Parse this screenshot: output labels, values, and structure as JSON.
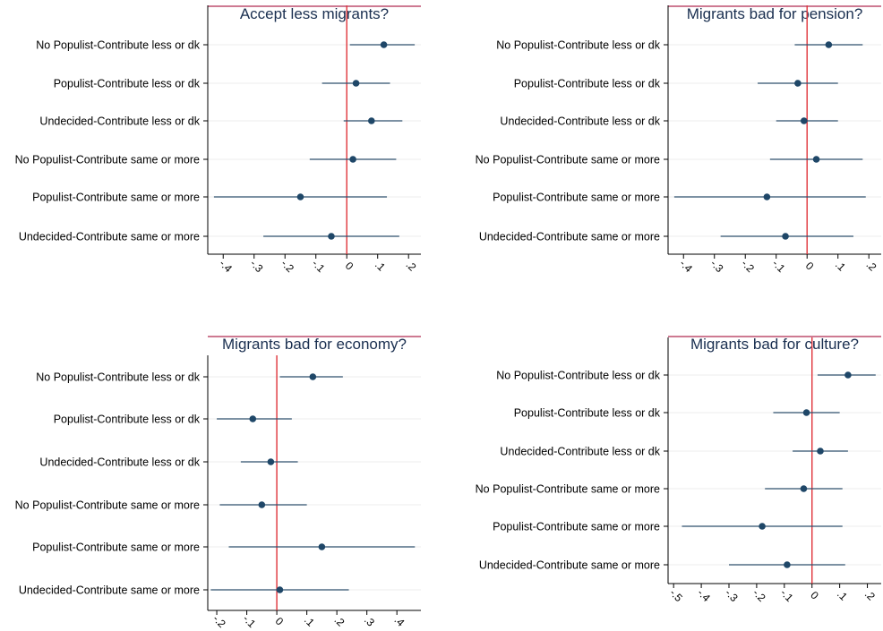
{
  "chart_data": [
    {
      "type": "coefficient-plot",
      "title": "Accept less migrants?",
      "categories": [
        "No Populist-Contribute less or dk",
        "Populist-Contribute less or dk",
        "Undecided-Contribute less or dk",
        "No Populist-Contribute same or more",
        "Populist-Contribute same or more",
        "Undecided-Contribute same or more"
      ],
      "estimates": [
        0.12,
        0.03,
        0.08,
        0.02,
        -0.15,
        -0.05
      ],
      "ci_low": [
        0.01,
        -0.08,
        -0.01,
        -0.12,
        -0.43,
        -0.27
      ],
      "ci_high": [
        0.22,
        0.14,
        0.18,
        0.16,
        0.13,
        0.17
      ],
      "xticks": [
        -0.4,
        -0.3,
        -0.2,
        -0.1,
        0,
        0.1,
        0.2
      ],
      "xtick_labels": [
        "-.4",
        "-.3",
        "-.2",
        "-.1",
        "0",
        ".1",
        ".2"
      ],
      "xlim": [
        -0.45,
        0.24
      ],
      "reference_line": 0
    },
    {
      "type": "coefficient-plot",
      "title": "Migrants bad for pension?",
      "categories": [
        "No Populist-Contribute less or dk",
        "Populist-Contribute less or dk",
        "Undecided-Contribute less or dk",
        "No Populist-Contribute same or more",
        "Populist-Contribute same or more",
        "Undecided-Contribute same or more"
      ],
      "estimates": [
        0.07,
        -0.03,
        -0.01,
        0.03,
        -0.13,
        -0.07
      ],
      "ci_low": [
        -0.04,
        -0.16,
        -0.1,
        -0.12,
        -0.43,
        -0.28
      ],
      "ci_high": [
        0.18,
        0.1,
        0.1,
        0.18,
        0.19,
        0.15
      ],
      "xticks": [
        -0.4,
        -0.3,
        -0.2,
        -0.1,
        0,
        0.1,
        0.2
      ],
      "xtick_labels": [
        "-.4",
        "-.3",
        "-.2",
        "-.1",
        "0",
        ".1",
        ".2"
      ],
      "xlim": [
        -0.45,
        0.24
      ],
      "reference_line": 0
    },
    {
      "type": "coefficient-plot",
      "title": "Migrants bad for economy?",
      "categories": [
        "No Populist-Contribute less or dk",
        "Populist-Contribute less or dk",
        "Undecided-Contribute less or dk",
        "No Populist-Contribute same or more",
        "Populist-Contribute same or more",
        "Undecided-Contribute same or more"
      ],
      "estimates": [
        0.12,
        -0.08,
        -0.02,
        -0.05,
        0.15,
        0.01
      ],
      "ci_low": [
        0.01,
        -0.2,
        -0.12,
        -0.19,
        -0.16,
        -0.22
      ],
      "ci_high": [
        0.22,
        0.05,
        0.07,
        0.1,
        0.46,
        0.24
      ],
      "xticks": [
        -0.2,
        -0.1,
        0,
        0.1,
        0.2,
        0.3,
        0.4
      ],
      "xtick_labels": [
        "-.2",
        "-.1",
        "0",
        ".1",
        ".2",
        ".3",
        ".4"
      ],
      "xlim": [
        -0.23,
        0.48
      ],
      "reference_line": 0
    },
    {
      "type": "coefficient-plot",
      "title": "Migrants bad for culture?",
      "categories": [
        "No Populist-Contribute less or dk",
        "Populist-Contribute less or dk",
        "Undecided-Contribute less or dk",
        "No Populist-Contribute same or more",
        "Populist-Contribute same or more",
        "Undecided-Contribute same or more"
      ],
      "estimates": [
        0.13,
        -0.02,
        0.03,
        -0.03,
        -0.18,
        -0.09
      ],
      "ci_low": [
        0.02,
        -0.14,
        -0.07,
        -0.17,
        -0.47,
        -0.3
      ],
      "ci_high": [
        0.23,
        0.1,
        0.13,
        0.11,
        0.11,
        0.12
      ],
      "xticks": [
        -0.5,
        -0.4,
        -0.3,
        -0.2,
        -0.1,
        0,
        0.1,
        0.2
      ],
      "xtick_labels": [
        "-.5",
        "-.4",
        "-.3",
        "-.2",
        "-.1",
        "0",
        ".1",
        ".2"
      ],
      "xlim": [
        -0.52,
        0.25
      ],
      "reference_line": 0
    }
  ],
  "colors": {
    "marker": "#1f4768",
    "ci_line": "#2d4f6c",
    "reference_line": "#e0343a",
    "title_rule": "#b02a52",
    "title_text": "#1a2f50",
    "gridline": "#eeeeee",
    "axis": "#000000",
    "background": "#ffffff"
  }
}
